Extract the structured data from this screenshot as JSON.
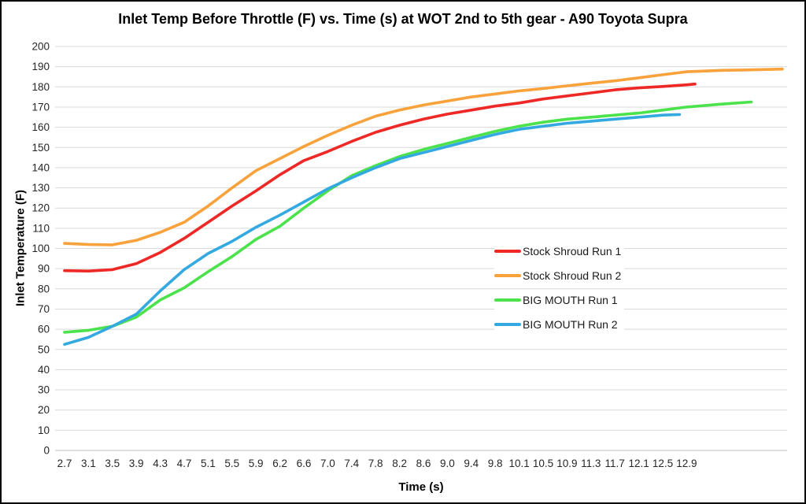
{
  "title": "Inlet Temp Before Throttle (F) vs. Time (s) at WOT 2nd to 5th gear - A90 Toyota Supra",
  "chart_data": {
    "type": "line",
    "title": "Inlet Temp Before Throttle (F) vs. Time (s) at WOT 2nd to 5th gear - A90 Toyota Supra",
    "xlabel": "Time (s)",
    "ylabel": "Inlet Temperature (F)",
    "ylim": [
      0,
      200
    ],
    "ytick_step": 10,
    "grid": true,
    "legend_position": "middle-right",
    "categories": [
      "2.7",
      "3.1",
      "3.5",
      "3.9",
      "4.3",
      "4.7",
      "5.1",
      "5.5",
      "5.9",
      "6.2",
      "6.6",
      "7.0",
      "7.4",
      "7.8",
      "8.2",
      "8.6",
      "9.0",
      "9.4",
      "9.8",
      "10.1",
      "10.5",
      "10.9",
      "11.3",
      "11.7",
      "12.1",
      "12.5",
      "12.9"
    ],
    "colors": {
      "grid": "#d9d9d9",
      "axis": "#bfbfbf",
      "tick_text": "#262626"
    },
    "series": [
      {
        "name": "Stock Shroud Run 1",
        "color": "#ee2824",
        "points": [
          [
            0,
            89
          ],
          [
            1,
            88.8
          ],
          [
            2,
            89.5
          ],
          [
            3,
            92.5
          ],
          [
            4,
            98
          ],
          [
            5,
            105
          ],
          [
            6,
            113
          ],
          [
            7,
            121
          ],
          [
            8,
            128.5
          ],
          [
            9,
            136.5
          ],
          [
            10,
            143.5
          ],
          [
            11,
            148
          ],
          [
            12,
            153
          ],
          [
            13,
            157.5
          ],
          [
            14,
            161
          ],
          [
            15,
            164
          ],
          [
            16,
            166.5
          ],
          [
            17,
            168.5
          ],
          [
            18,
            170.5
          ],
          [
            19,
            172
          ],
          [
            20,
            174
          ],
          [
            21,
            175.5
          ],
          [
            22,
            177
          ],
          [
            23,
            178.5
          ],
          [
            24,
            179.5
          ],
          [
            25,
            180.2
          ],
          [
            26,
            181
          ],
          [
            26.35,
            181.4
          ]
        ]
      },
      {
        "name": "Stock Shroud Run 2",
        "color": "#f9a13a",
        "points": [
          [
            0,
            102.5
          ],
          [
            1,
            102
          ],
          [
            2,
            101.8
          ],
          [
            3,
            104
          ],
          [
            4,
            108
          ],
          [
            5,
            113
          ],
          [
            6,
            121
          ],
          [
            7,
            130
          ],
          [
            8,
            138.5
          ],
          [
            9,
            144.5
          ],
          [
            10,
            150.5
          ],
          [
            11,
            156
          ],
          [
            12,
            161
          ],
          [
            13,
            165.5
          ],
          [
            14,
            168.5
          ],
          [
            15,
            171
          ],
          [
            16,
            173
          ],
          [
            17,
            175
          ],
          [
            18,
            176.5
          ],
          [
            19,
            178
          ],
          [
            20,
            179.2
          ],
          [
            21,
            180.5
          ],
          [
            22,
            181.8
          ],
          [
            23,
            183
          ],
          [
            24,
            184.5
          ],
          [
            25,
            186
          ],
          [
            26,
            187.5
          ],
          [
            27.5,
            188.2
          ],
          [
            28.5,
            188.4
          ],
          [
            30,
            188.8
          ]
        ]
      },
      {
        "name": "BIG MOUTH Run 1",
        "color": "#4ce24c",
        "points": [
          [
            0,
            58.5
          ],
          [
            1,
            59.5
          ],
          [
            2,
            61.5
          ],
          [
            3,
            66
          ],
          [
            4,
            74.5
          ],
          [
            5,
            80.5
          ],
          [
            6,
            88.5
          ],
          [
            7,
            96
          ],
          [
            8,
            104.5
          ],
          [
            9,
            111
          ],
          [
            10,
            120
          ],
          [
            11,
            128.5
          ],
          [
            12,
            136
          ],
          [
            13,
            141
          ],
          [
            14,
            145.5
          ],
          [
            15,
            149
          ],
          [
            16,
            152
          ],
          [
            17,
            155
          ],
          [
            18,
            158
          ],
          [
            19,
            160.5
          ],
          [
            20,
            162.5
          ],
          [
            21,
            164
          ],
          [
            22,
            165
          ],
          [
            23,
            166
          ],
          [
            24,
            167
          ],
          [
            25,
            168.5
          ],
          [
            26,
            170
          ],
          [
            27.3,
            171.3
          ],
          [
            28.7,
            172.5
          ]
        ]
      },
      {
        "name": "BIG MOUTH Run 2",
        "color": "#34a9e1",
        "points": [
          [
            0,
            52.5
          ],
          [
            1,
            56
          ],
          [
            2,
            61.5
          ],
          [
            3,
            67.5
          ],
          [
            4,
            79
          ],
          [
            5,
            89.5
          ],
          [
            6,
            97.5
          ],
          [
            7,
            103.5
          ],
          [
            8,
            110.5
          ],
          [
            9,
            116.5
          ],
          [
            10,
            123
          ],
          [
            11,
            129.5
          ],
          [
            12,
            135
          ],
          [
            13,
            140
          ],
          [
            14,
            144.5
          ],
          [
            15,
            147.5
          ],
          [
            16,
            150.5
          ],
          [
            17,
            153.5
          ],
          [
            18,
            156.5
          ],
          [
            19,
            159
          ],
          [
            20,
            160.5
          ],
          [
            21,
            162
          ],
          [
            22,
            163
          ],
          [
            23,
            164
          ],
          [
            24,
            165
          ],
          [
            25,
            166
          ],
          [
            25.7,
            166.3
          ]
        ]
      }
    ]
  }
}
